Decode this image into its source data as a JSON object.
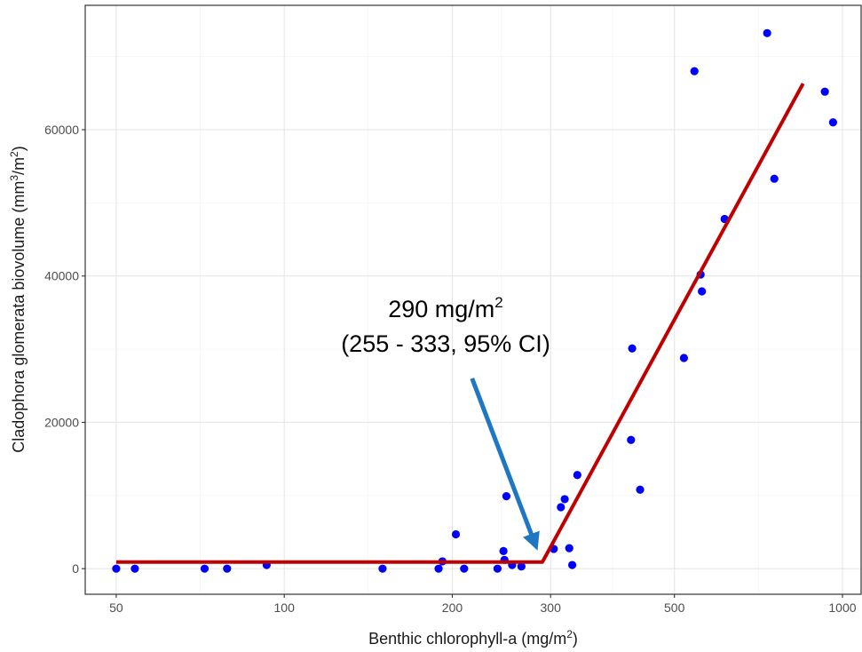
{
  "chart_data": {
    "type": "scatter",
    "x_scale": "log",
    "xlim": [
      44,
      1080
    ],
    "ylim": [
      -3500,
      77000
    ],
    "x_ticks": [
      50,
      100,
      200,
      300,
      500,
      1000
    ],
    "x_tick_labels": [
      "50",
      "100",
      "200",
      "300",
      "500",
      "1000"
    ],
    "y_ticks": [
      0,
      20000,
      40000,
      60000
    ],
    "y_tick_labels": [
      "0",
      "20000",
      "40000",
      "60000"
    ],
    "x_minor_gridlines": [
      70.7,
      141.4,
      244.9,
      387.3,
      707.1
    ],
    "y_minor_gridlines": [
      10000,
      30000,
      50000,
      70000
    ],
    "xlabel": {
      "prefix": "Benthic chlorophyll-a (mg/m",
      "sup": "2",
      "suffix": ")"
    },
    "ylabel": {
      "prefix": "Cladophora glomerata biovolume (mm",
      "sup1": "3",
      "mid": "/m",
      "sup2": "2",
      "suffix": ")"
    },
    "grid": true,
    "points": [
      {
        "x": 50,
        "y": 0
      },
      {
        "x": 54,
        "y": 0
      },
      {
        "x": 72,
        "y": 0
      },
      {
        "x": 79,
        "y": 0
      },
      {
        "x": 93,
        "y": 500
      },
      {
        "x": 150,
        "y": 0
      },
      {
        "x": 189,
        "y": 0
      },
      {
        "x": 192,
        "y": 1000
      },
      {
        "x": 203,
        "y": 4700
      },
      {
        "x": 210,
        "y": 0
      },
      {
        "x": 241,
        "y": 0
      },
      {
        "x": 247,
        "y": 2400
      },
      {
        "x": 248,
        "y": 1200
      },
      {
        "x": 250,
        "y": 9900
      },
      {
        "x": 256,
        "y": 500
      },
      {
        "x": 266,
        "y": 300
      },
      {
        "x": 304,
        "y": 2700
      },
      {
        "x": 313,
        "y": 8400
      },
      {
        "x": 318,
        "y": 9500
      },
      {
        "x": 324,
        "y": 2800
      },
      {
        "x": 328,
        "y": 500
      },
      {
        "x": 335,
        "y": 12800
      },
      {
        "x": 420,
        "y": 30100
      },
      {
        "x": 418,
        "y": 17600
      },
      {
        "x": 434,
        "y": 10800
      },
      {
        "x": 520,
        "y": 28800
      },
      {
        "x": 543,
        "y": 68000
      },
      {
        "x": 557,
        "y": 40200
      },
      {
        "x": 560,
        "y": 37900
      },
      {
        "x": 615,
        "y": 47800
      },
      {
        "x": 733,
        "y": 73200
      },
      {
        "x": 755,
        "y": 53300
      },
      {
        "x": 930,
        "y": 65200
      },
      {
        "x": 962,
        "y": 61000
      }
    ],
    "fit_line": {
      "x": [
        50,
        290,
        850
      ],
      "y": [
        900,
        900,
        66300
      ],
      "color": "#c00000"
    },
    "point_color": "#0000ff",
    "annotation": {
      "line1_prefix": "290 mg/m",
      "line1_sup": "2",
      "line2": "(255 - 333, 95% CI)",
      "arrow_color": "#1f77c4",
      "arrow_from": {
        "x": 217,
        "y": 26000
      },
      "arrow_to": {
        "x": 281,
        "y": 3500
      }
    }
  }
}
